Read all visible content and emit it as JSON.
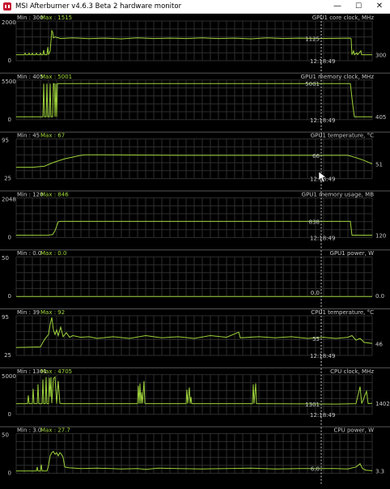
{
  "window": {
    "title": "MSI Afterburner v4.6.3 Beta 2 hardware monitor",
    "controls": {
      "minimize": "—",
      "maximize": "☐",
      "close": "✕"
    }
  },
  "colors": {
    "trace": "#9cd13a",
    "max_label": "#a5dc3c",
    "text": "#c8c8c8",
    "grid": "#2e2e2e",
    "background": "#000000"
  },
  "graphs": [
    {
      "name": "GPU1 core clock, MHz",
      "min_label": "Min : 300",
      "max_label": "Max : 1515",
      "y_top": "2000",
      "y_bottom": "0",
      "cursor_value": "1125",
      "cursor_time": "12:18:49",
      "current_value": "300",
      "range": [
        0,
        2000
      ],
      "series": [
        [
          0,
          300
        ],
        [
          10,
          300
        ],
        [
          11,
          380
        ],
        [
          12,
          300
        ],
        [
          15,
          300
        ],
        [
          16,
          380
        ],
        [
          17,
          300
        ],
        [
          19,
          300
        ],
        [
          20,
          380
        ],
        [
          21,
          300
        ],
        [
          24,
          300
        ],
        [
          25,
          380
        ],
        [
          26,
          300
        ],
        [
          29,
          300
        ],
        [
          30,
          380
        ],
        [
          31,
          300
        ],
        [
          33,
          300
        ],
        [
          34,
          540
        ],
        [
          35,
          300
        ],
        [
          38,
          300
        ],
        [
          39,
          680
        ],
        [
          40,
          300
        ],
        [
          42,
          500
        ],
        [
          43,
          1000
        ],
        [
          44,
          1515
        ],
        [
          45,
          1450
        ],
        [
          46,
          1150
        ],
        [
          48,
          1200
        ],
        [
          55,
          1120
        ],
        [
          70,
          1150
        ],
        [
          90,
          1110
        ],
        [
          110,
          1140
        ],
        [
          130,
          1100
        ],
        [
          150,
          1150
        ],
        [
          170,
          1120
        ],
        [
          190,
          1140
        ],
        [
          210,
          1120
        ],
        [
          230,
          1150
        ],
        [
          250,
          1120
        ],
        [
          270,
          1140
        ],
        [
          290,
          1100
        ],
        [
          310,
          1150
        ],
        [
          330,
          1120
        ],
        [
          350,
          1140
        ],
        [
          370,
          1120
        ],
        [
          395,
          1125
        ],
        [
          413,
          1140
        ],
        [
          414,
          1100
        ],
        [
          415,
          300
        ],
        [
          417,
          500
        ],
        [
          418,
          300
        ],
        [
          421,
          400
        ],
        [
          422,
          300
        ],
        [
          426,
          500
        ],
        [
          427,
          300
        ],
        [
          440,
          300
        ]
      ]
    },
    {
      "name": "GPU1 memory clock, MHz",
      "min_label": "Min : 405",
      "max_label": "Max : 5001",
      "y_top": "5500",
      "y_bottom": "0",
      "cursor_value": "5001",
      "cursor_time": "12:18:49",
      "current_value": "405",
      "range": [
        0,
        5500
      ],
      "series": [
        [
          0,
          405
        ],
        [
          33,
          405
        ],
        [
          34,
          5001
        ],
        [
          35,
          405
        ],
        [
          37,
          405
        ],
        [
          38,
          5001
        ],
        [
          39,
          405
        ],
        [
          41,
          405
        ],
        [
          42,
          5001
        ],
        [
          43,
          405
        ],
        [
          45,
          405
        ],
        [
          46,
          5001
        ],
        [
          47,
          5001
        ],
        [
          48,
          405
        ],
        [
          49,
          5001
        ],
        [
          50,
          405
        ],
        [
          51,
          5001
        ],
        [
          413,
          5001
        ],
        [
          414,
          4000
        ],
        [
          416,
          2000
        ],
        [
          418,
          405
        ],
        [
          440,
          405
        ]
      ]
    },
    {
      "name": "GPU1 temperature, °C",
      "min_label": "Min : 45",
      "max_label": "Max : 67",
      "y_top": "95",
      "y_bottom": "25",
      "cursor_value": "66",
      "cursor_time": "12:18:49",
      "current_value": "51",
      "range": [
        25,
        95
      ],
      "series": [
        [
          0,
          45
        ],
        [
          20,
          45
        ],
        [
          35,
          47
        ],
        [
          45,
          53
        ],
        [
          60,
          60
        ],
        [
          70,
          63
        ],
        [
          80,
          66
        ],
        [
          85,
          67
        ],
        [
          100,
          67
        ],
        [
          200,
          66
        ],
        [
          300,
          66
        ],
        [
          395,
          66
        ],
        [
          410,
          66
        ],
        [
          420,
          62
        ],
        [
          430,
          57
        ],
        [
          440,
          51
        ]
      ]
    },
    {
      "name": "GPU1 memory usage, MB",
      "min_label": "Min : 120",
      "max_label": "Max : 846",
      "y_top": "2048",
      "y_bottom": "0",
      "cursor_value": "838",
      "cursor_time": "12:18:49",
      "current_value": "120",
      "range": [
        0,
        2048
      ],
      "series": [
        [
          0,
          120
        ],
        [
          40,
          125
        ],
        [
          45,
          150
        ],
        [
          48,
          350
        ],
        [
          52,
          820
        ],
        [
          55,
          838
        ],
        [
          413,
          838
        ],
        [
          415,
          120
        ],
        [
          440,
          120
        ]
      ]
    },
    {
      "name": "GPU1 power, W",
      "min_label": "Min : 0.0",
      "max_label": "Max : 0.0",
      "y_top": "50",
      "y_bottom": "0",
      "cursor_value": "0.0",
      "cursor_time": "",
      "current_value": "0.0",
      "range": [
        0,
        50
      ],
      "series": [
        [
          0,
          0
        ],
        [
          440,
          0
        ]
      ]
    },
    {
      "name": "CPU1 temperature, °C",
      "min_label": "Min : 39",
      "max_label": "Max : 92",
      "y_top": "95",
      "y_bottom": "25",
      "cursor_value": "55",
      "cursor_time": "12:18:49",
      "current_value": "46",
      "range": [
        25,
        95
      ],
      "series": [
        [
          0,
          39
        ],
        [
          30,
          40
        ],
        [
          33,
          48
        ],
        [
          36,
          55
        ],
        [
          40,
          62
        ],
        [
          42,
          80
        ],
        [
          44,
          92
        ],
        [
          46,
          70
        ],
        [
          48,
          62
        ],
        [
          50,
          70
        ],
        [
          52,
          60
        ],
        [
          55,
          75
        ],
        [
          58,
          58
        ],
        [
          62,
          65
        ],
        [
          66,
          57
        ],
        [
          70,
          60
        ],
        [
          80,
          57
        ],
        [
          90,
          58
        ],
        [
          100,
          55
        ],
        [
          120,
          58
        ],
        [
          140,
          55
        ],
        [
          160,
          60
        ],
        [
          180,
          56
        ],
        [
          200,
          58
        ],
        [
          220,
          55
        ],
        [
          240,
          60
        ],
        [
          260,
          57
        ],
        [
          275,
          66
        ],
        [
          277,
          56
        ],
        [
          300,
          58
        ],
        [
          320,
          56
        ],
        [
          340,
          58
        ],
        [
          360,
          55
        ],
        [
          380,
          57
        ],
        [
          395,
          55
        ],
        [
          410,
          57
        ],
        [
          415,
          60
        ],
        [
          420,
          52
        ],
        [
          425,
          55
        ],
        [
          430,
          48
        ],
        [
          440,
          46
        ]
      ]
    },
    {
      "name": "CPU clock, MHz",
      "min_label": "Min : 1301",
      "max_label": "Max : 4705",
      "y_top": "5000",
      "y_bottom": "0",
      "cursor_value": "1301",
      "cursor_time": "12:18:49",
      "current_value": "1402",
      "range": [
        0,
        5000
      ],
      "series": [
        [
          0,
          1350
        ],
        [
          14,
          1350
        ],
        [
          15,
          2400
        ],
        [
          16,
          1350
        ],
        [
          20,
          1350
        ],
        [
          21,
          3200
        ],
        [
          22,
          1350
        ],
        [
          26,
          1350
        ],
        [
          27,
          3800
        ],
        [
          28,
          1350
        ],
        [
          32,
          1350
        ],
        [
          33,
          4400
        ],
        [
          34,
          1350
        ],
        [
          36,
          1350
        ],
        [
          37,
          4705
        ],
        [
          38,
          1350
        ],
        [
          40,
          1350
        ],
        [
          41,
          4600
        ],
        [
          42,
          2200
        ],
        [
          43,
          4705
        ],
        [
          44,
          1400
        ],
        [
          46,
          4500
        ],
        [
          48,
          4705
        ],
        [
          50,
          1350
        ],
        [
          52,
          4200
        ],
        [
          54,
          1400
        ],
        [
          56,
          1350
        ],
        [
          150,
          1350
        ],
        [
          151,
          3600
        ],
        [
          152,
          1350
        ],
        [
          153,
          3900
        ],
        [
          154,
          1350
        ],
        [
          155,
          2800
        ],
        [
          156,
          1350
        ],
        [
          158,
          4200
        ],
        [
          159,
          1400
        ],
        [
          160,
          1350
        ],
        [
          210,
          1350
        ],
        [
          211,
          3100
        ],
        [
          212,
          1350
        ],
        [
          214,
          3400
        ],
        [
          215,
          1350
        ],
        [
          216,
          2200
        ],
        [
          217,
          1350
        ],
        [
          292,
          1350
        ],
        [
          293,
          3800
        ],
        [
          294,
          1350
        ],
        [
          296,
          3900
        ],
        [
          297,
          1350
        ],
        [
          300,
          1350
        ],
        [
          395,
          1301
        ],
        [
          420,
          1350
        ],
        [
          425,
          3500
        ],
        [
          427,
          1350
        ],
        [
          433,
          2900
        ],
        [
          435,
          1350
        ],
        [
          440,
          1402
        ]
      ]
    },
    {
      "name": "CPU power, W",
      "min_label": "Min : 3.0",
      "max_label": "Max : 27.7",
      "y_top": "50",
      "y_bottom": "0",
      "cursor_value": "6.0",
      "cursor_time": "",
      "current_value": "3.3",
      "range": [
        0,
        50
      ],
      "series": [
        [
          0,
          3
        ],
        [
          25,
          3
        ],
        [
          26,
          8
        ],
        [
          27,
          3
        ],
        [
          30,
          3
        ],
        [
          31,
          11
        ],
        [
          32,
          3
        ],
        [
          38,
          3
        ],
        [
          40,
          10
        ],
        [
          42,
          22
        ],
        [
          44,
          26
        ],
        [
          46,
          27.7
        ],
        [
          48,
          24
        ],
        [
          50,
          26
        ],
        [
          52,
          22
        ],
        [
          54,
          26
        ],
        [
          56,
          24
        ],
        [
          58,
          20
        ],
        [
          60,
          8
        ],
        [
          65,
          7
        ],
        [
          80,
          6
        ],
        [
          100,
          6.5
        ],
        [
          130,
          5.5
        ],
        [
          150,
          6
        ],
        [
          160,
          5
        ],
        [
          175,
          6.5
        ],
        [
          200,
          6
        ],
        [
          230,
          5.5
        ],
        [
          260,
          6
        ],
        [
          290,
          6.5
        ],
        [
          320,
          5.5
        ],
        [
          350,
          6
        ],
        [
          380,
          6
        ],
        [
          395,
          6
        ],
        [
          410,
          5.5
        ],
        [
          420,
          8
        ],
        [
          425,
          12
        ],
        [
          428,
          6
        ],
        [
          432,
          4
        ],
        [
          440,
          3.3
        ]
      ]
    }
  ]
}
